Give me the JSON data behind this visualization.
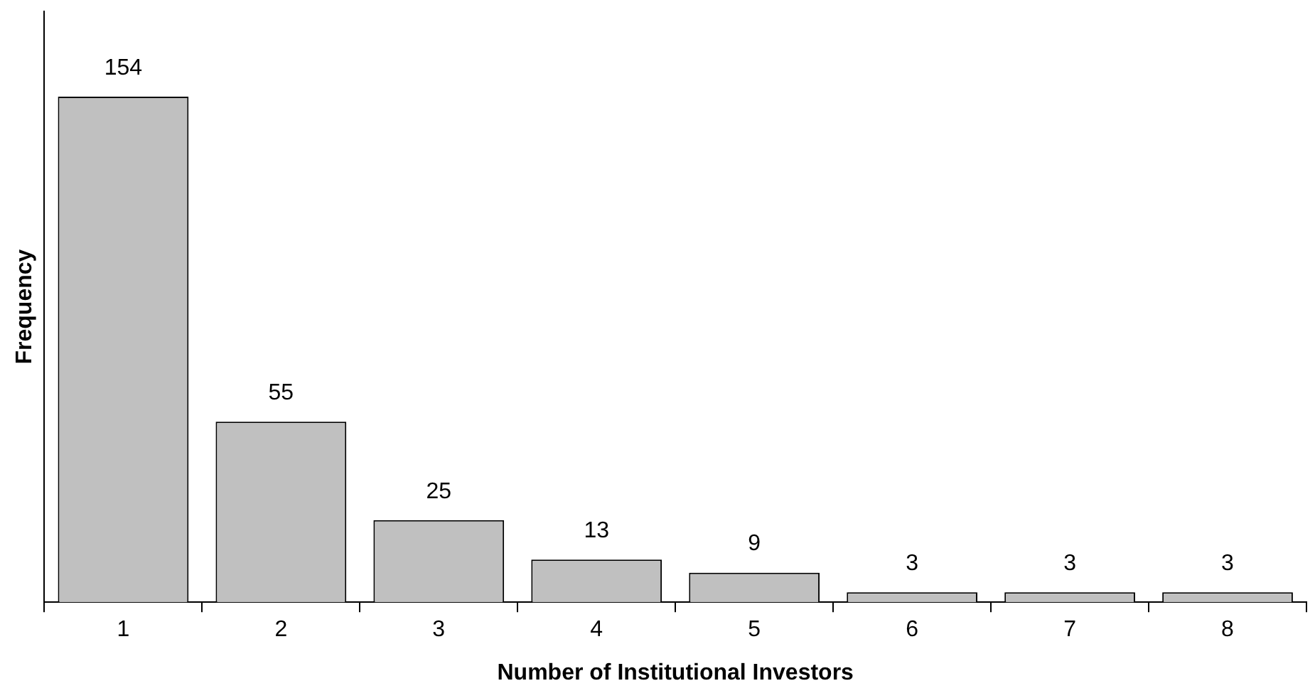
{
  "chart_data": {
    "type": "bar",
    "xlabel": "Number of Institutional Investors",
    "ylabel": "Frequency",
    "categories": [
      "1",
      "2",
      "3",
      "4",
      "5",
      "6",
      "7",
      "8"
    ],
    "values": [
      154,
      55,
      25,
      13,
      9,
      3,
      3,
      3
    ],
    "color": "#c0c0c0",
    "data_labels": true,
    "grid": false,
    "legend": false,
    "tick_labels": "x"
  }
}
